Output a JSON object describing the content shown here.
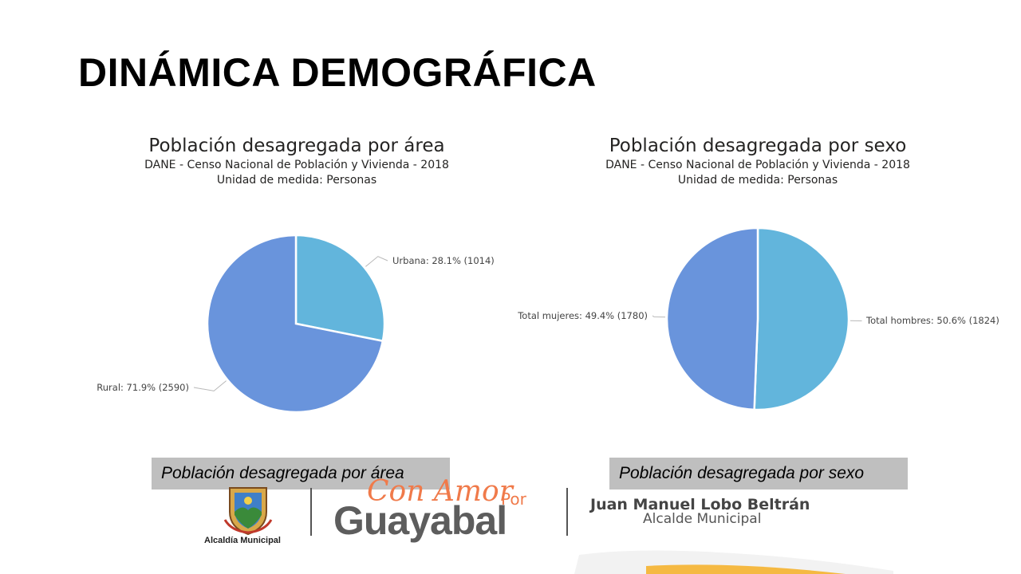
{
  "slide": {
    "title": "DINÁMICA DEMOGRÁFICA"
  },
  "chart_data": [
    {
      "type": "pie",
      "title": "Población desagregada por área",
      "subtitle": "DANE - Censo Nacional de Población y Vivienda - 2018",
      "subtitle2": "Unidad de medida: Personas",
      "slices": [
        {
          "name": "Urbana",
          "value": 1014,
          "percent": 28.1,
          "label": "Urbana: 28.1% (1014)",
          "color": "#62b5dc"
        },
        {
          "name": "Rural",
          "value": 2590,
          "percent": 71.9,
          "label": "Rural: 71.9% (2590)",
          "color": "#6994dc"
        }
      ]
    },
    {
      "type": "pie",
      "title": "Población desagregada por sexo",
      "subtitle": "DANE - Censo Nacional de Población y Vivienda - 2018",
      "subtitle2": "Unidad de medida: Personas",
      "slices": [
        {
          "name": "Total hombres",
          "value": 1824,
          "percent": 50.6,
          "label": "Total hombres: 50.6% (1824)",
          "color": "#62b5dc"
        },
        {
          "name": "Total mujeres",
          "value": 1780,
          "percent": 49.4,
          "label": "Total mujeres: 49.4% (1780)",
          "color": "#6994dc"
        }
      ]
    }
  ],
  "captions": {
    "left": "Población desagregada por área",
    "right": "Población desagregada por sexo"
  },
  "footer": {
    "crest_label": "Alcaldía Municipal",
    "slogan_script": "Con Amor",
    "slogan_por": "Por",
    "slogan_main": "Guayabal",
    "mayor_name": "Juan Manuel Lobo Beltrán",
    "mayor_role": "Alcalde Municipal"
  },
  "colors": {
    "accent_orange": "#f07a4a",
    "slice_light": "#62b5dc",
    "slice_dark": "#6994dc",
    "caption_bg": "#bfbfbf"
  }
}
